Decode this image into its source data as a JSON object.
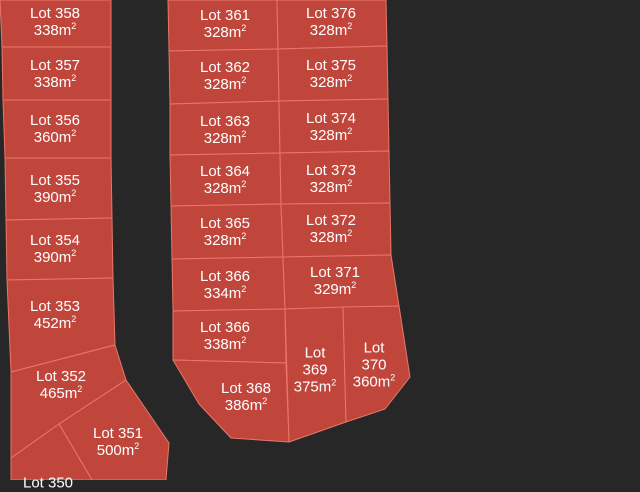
{
  "map": {
    "area_unit": "m",
    "area_unit_exp": "2",
    "lots": [
      {
        "id": "358",
        "title": "Lot 358",
        "area": "338"
      },
      {
        "id": "357",
        "title": "Lot 357",
        "area": "338"
      },
      {
        "id": "356",
        "title": "Lot 356",
        "area": "360"
      },
      {
        "id": "355",
        "title": "Lot 355",
        "area": "390"
      },
      {
        "id": "354",
        "title": "Lot 354",
        "area": "390"
      },
      {
        "id": "353",
        "title": "Lot 353",
        "area": "452"
      },
      {
        "id": "352",
        "title": "Lot 352",
        "area": "465"
      },
      {
        "id": "351",
        "title": "Lot 351",
        "area": "500"
      },
      {
        "id": "350",
        "title": "Lot 350",
        "area": ""
      },
      {
        "id": "361",
        "title": "Lot 361",
        "area": "328"
      },
      {
        "id": "362",
        "title": "Lot 362",
        "area": "328"
      },
      {
        "id": "363",
        "title": "Lot 363",
        "area": "328"
      },
      {
        "id": "364",
        "title": "Lot 364",
        "area": "328"
      },
      {
        "id": "365",
        "title": "Lot 365",
        "area": "328"
      },
      {
        "id": "366a",
        "title": "Lot 366",
        "area": "334"
      },
      {
        "id": "366b",
        "title": "Lot 366",
        "area": "338"
      },
      {
        "id": "368",
        "title": "Lot 368",
        "area": "386"
      },
      {
        "id": "376",
        "title": "Lot 376",
        "area": "328"
      },
      {
        "id": "375",
        "title": "Lot 375",
        "area": "328"
      },
      {
        "id": "374",
        "title": "Lot 374",
        "area": "328"
      },
      {
        "id": "373",
        "title": "Lot 373",
        "area": "328"
      },
      {
        "id": "372",
        "title": "Lot 372",
        "area": "328"
      },
      {
        "id": "371",
        "title": "Lot 371",
        "area": "329"
      },
      {
        "id": "369",
        "title": "Lot 369",
        "area": "375"
      },
      {
        "id": "370",
        "title": "Lot 370",
        "area": "360"
      }
    ]
  }
}
